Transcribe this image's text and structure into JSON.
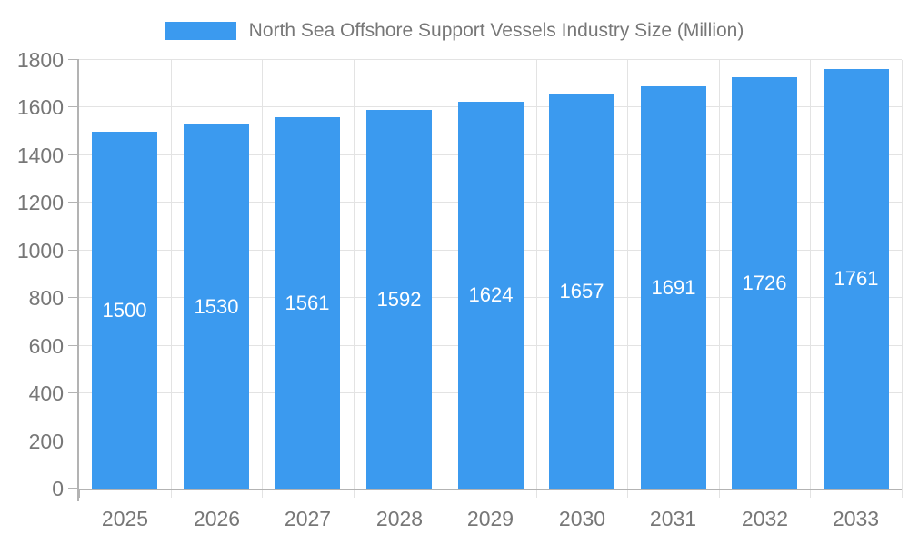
{
  "chart_data": {
    "type": "bar",
    "title": "North Sea Offshore Support Vessels Industry Size (Million)",
    "categories": [
      "2025",
      "2026",
      "2027",
      "2028",
      "2029",
      "2030",
      "2031",
      "2032",
      "2033"
    ],
    "values": [
      1500,
      1530,
      1561,
      1592,
      1624,
      1657,
      1691,
      1726,
      1761
    ],
    "series_name": "North Sea Offshore Support Vessels Industry Size (Million)",
    "xlabel": "",
    "ylabel": "",
    "ylim": [
      0,
      1800
    ],
    "y_tick_step": 200,
    "y_ticks": [
      0,
      200,
      400,
      600,
      800,
      1000,
      1200,
      1400,
      1600,
      1800
    ],
    "grid": true,
    "legend_position": "top",
    "value_labels_inside_bars": true,
    "colors": {
      "bar": "#3B9AEF",
      "bar_label": "#FFFFFF",
      "axis": "#B3B3B3",
      "grid": "#E3E3E3",
      "text": "#777777",
      "background": "#FFFFFF"
    }
  }
}
